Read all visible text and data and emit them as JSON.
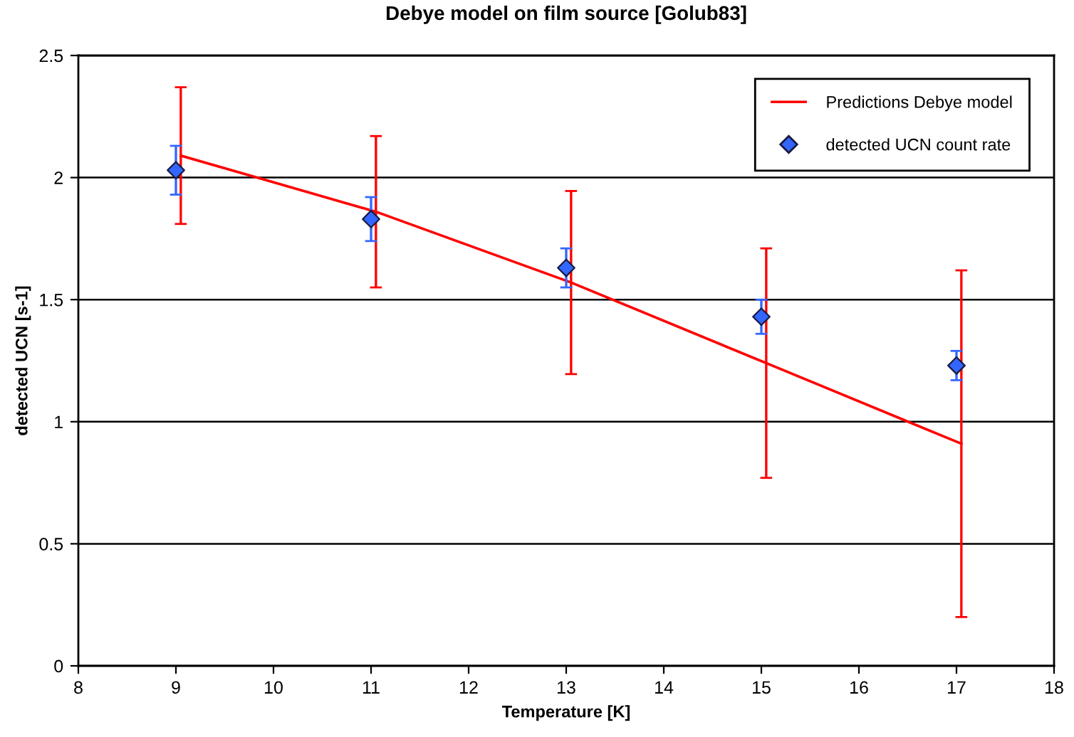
{
  "chart_data": {
    "type": "line",
    "title": "Debye model on film source [Golub83]",
    "xlabel": "Temperature [K]",
    "ylabel": "detected UCN [s-1]",
    "xlim": [
      8,
      18
    ],
    "xticks": [
      8,
      9,
      10,
      11,
      12,
      13,
      14,
      15,
      16,
      17,
      18
    ],
    "ylim": [
      0,
      2.5
    ],
    "yticks": [
      0,
      0.5,
      1,
      1.5,
      2,
      2.5
    ],
    "grid": "y",
    "legend": "top right",
    "series": [
      {
        "name": "Predictions Debye model",
        "color": "#ff0000",
        "marker": "none",
        "line_style": "solid",
        "x": [
          9.05,
          11.05,
          13.05,
          15.05,
          17.05
        ],
        "values": [
          2.09,
          1.86,
          1.57,
          1.24,
          0.91
        ],
        "errors": [
          0.28,
          0.31,
          0.375,
          0.47,
          0.71
        ]
      },
      {
        "name": "detected UCN count rate",
        "type": "scatter",
        "color": "#3366ff",
        "marker": "diamond",
        "x": [
          9,
          11,
          13,
          15,
          17
        ],
        "values": [
          2.03,
          1.83,
          1.63,
          1.43,
          1.23
        ],
        "errors": [
          0.1,
          0.09,
          0.08,
          0.07,
          0.06
        ]
      }
    ]
  }
}
